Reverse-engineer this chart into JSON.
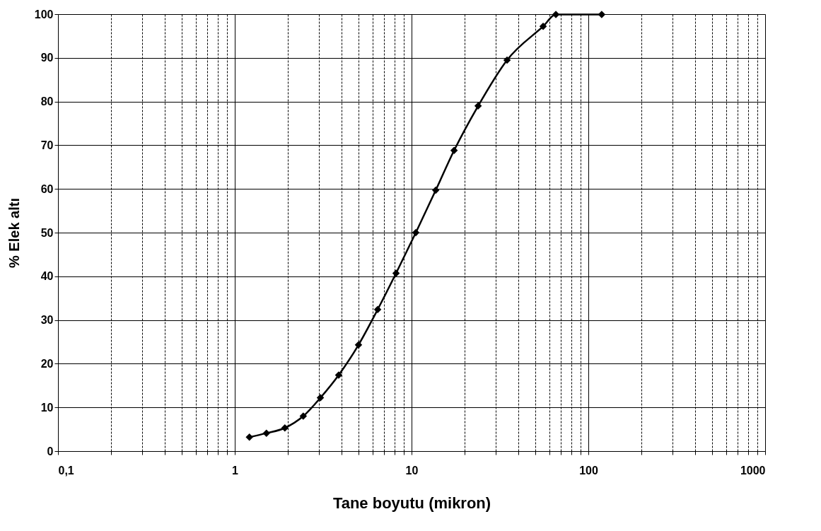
{
  "chart_data": {
    "type": "line",
    "xlabel": "Tane boyutu  (mikron)",
    "ylabel": "% Elek altı",
    "log": "x",
    "x": [
      1.21,
      1.51,
      1.92,
      2.44,
      3.05,
      3.87,
      5.01,
      6.43,
      8.17,
      10.57,
      13.7,
      17.4,
      23.8,
      34.7,
      55.5,
      65.5,
      119
    ],
    "series": [
      {
        "color": "#000000",
        "values": [
          3.2,
          4.1,
          5.3,
          8,
          12.2,
          17.4,
          24.3,
          32.4,
          40.7,
          50,
          59.7,
          68.8,
          79,
          89.5,
          97.2,
          99.9,
          99.9
        ]
      }
    ],
    "xlim": [
      0.1,
      1000
    ],
    "ylim": [
      0,
      100
    ],
    "xticks": [
      {
        "value": 0.1,
        "label": "0,1"
      },
      {
        "value": 0.2,
        "label": null
      },
      {
        "value": 0.3,
        "label": null
      },
      {
        "value": 0.4,
        "label": null
      },
      {
        "value": 0.5,
        "label": null
      },
      {
        "value": 0.6,
        "label": null
      },
      {
        "value": 0.7,
        "label": null
      },
      {
        "value": 0.8,
        "label": null
      },
      {
        "value": 0.9,
        "label": null
      },
      1,
      {
        "value": 2,
        "label": null
      },
      {
        "value": 3,
        "label": null
      },
      {
        "value": 4,
        "label": null
      },
      {
        "value": 5,
        "label": null
      },
      {
        "value": 6,
        "label": null
      },
      {
        "value": 7,
        "label": null
      },
      {
        "value": 8,
        "label": null
      },
      {
        "value": 9,
        "label": null
      },
      10,
      {
        "value": 20,
        "label": null
      },
      {
        "value": 30,
        "label": null
      },
      {
        "value": 40,
        "label": null
      },
      {
        "value": 50,
        "label": null
      },
      {
        "value": 60,
        "label": null
      },
      {
        "value": 70,
        "label": null
      },
      {
        "value": 80,
        "label": null
      },
      {
        "value": 90,
        "label": null
      },
      100,
      {
        "value": 200,
        "label": null
      },
      {
        "value": 300,
        "label": null
      },
      {
        "value": 400,
        "label": null
      },
      {
        "value": 500,
        "label": null
      },
      {
        "value": 600,
        "label": null
      },
      {
        "value": 700,
        "label": null
      },
      {
        "value": 800,
        "label": null
      },
      {
        "value": 900,
        "label": null
      },
      1000
    ],
    "yticks": [
      0,
      10,
      20,
      30,
      40,
      50,
      60,
      70,
      80,
      90,
      100
    ],
    "grid": true,
    "marker": "diamond",
    "line_style": "solid",
    "legend": false
  }
}
